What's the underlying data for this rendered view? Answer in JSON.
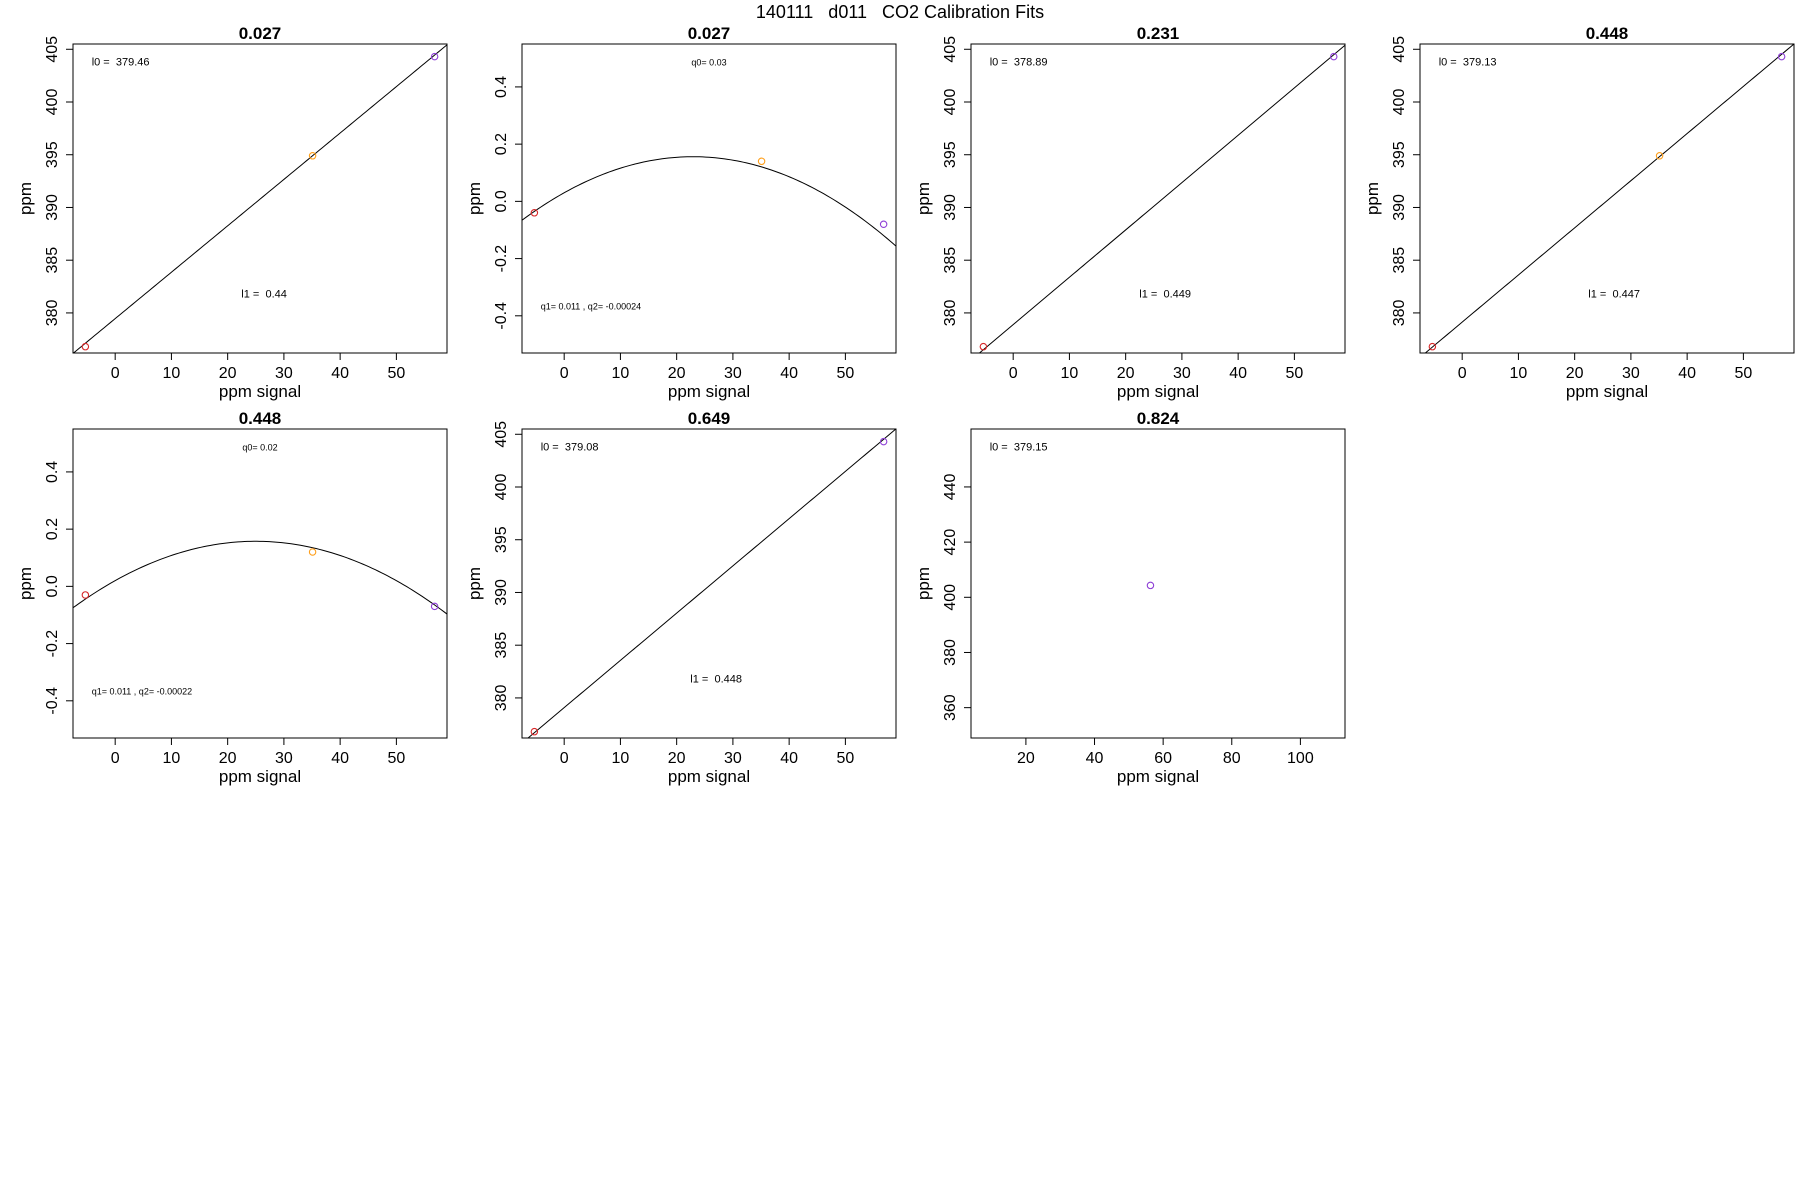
{
  "figure": {
    "title": "140111   d011   CO2 Calibration Fits",
    "colors": {
      "frame": "#000000",
      "fit_line": "#000000"
    }
  },
  "chart_data": [
    {
      "type": "scatter",
      "title": "0.027",
      "xlabel": "ppm signal",
      "ylabel": "ppm",
      "xlim": [
        -7.5,
        59
      ],
      "ylim": [
        376.2,
        405.5
      ],
      "xticks": [
        0,
        10,
        20,
        30,
        40,
        50
      ],
      "yticks": [
        380,
        385,
        390,
        395,
        400,
        405
      ],
      "points": [
        {
          "x": -5.3,
          "y": 376.8,
          "color": "#d62728"
        },
        {
          "x": 35.1,
          "y": 394.9,
          "color": "#ff9f1a"
        },
        {
          "x": 56.8,
          "y": 404.3,
          "color": "#8e3fd6"
        }
      ],
      "fit": {
        "kind": "linear",
        "a": 379.46,
        "b": 0.44
      },
      "annotations": [
        "l0 =  379.46",
        "l1 =  0.44"
      ]
    },
    {
      "type": "scatter",
      "title": "0.027",
      "xlabel": "ppm signal",
      "ylabel": "ppm",
      "xlim": [
        -7.5,
        59
      ],
      "ylim": [
        -0.53,
        0.55
      ],
      "xticks": [
        0,
        10,
        20,
        30,
        40,
        50
      ],
      "yticks": [
        -0.4,
        -0.2,
        0.0,
        0.2,
        0.4
      ],
      "points": [
        {
          "x": -5.3,
          "y": -0.04,
          "color": "#d62728"
        },
        {
          "x": 35.1,
          "y": 0.14,
          "color": "#ff9f1a"
        },
        {
          "x": 56.8,
          "y": -0.08,
          "color": "#8e3fd6"
        }
      ],
      "fit": {
        "kind": "quadratic",
        "a": 0.03,
        "b": 0.011,
        "c": -0.00024
      },
      "annotations": [
        "q0= 0.03",
        "q1= 0.011 , q2= -0.00024"
      ]
    },
    {
      "type": "scatter",
      "title": "0.231",
      "xlabel": "ppm signal",
      "ylabel": "ppm",
      "xlim": [
        -7.5,
        59
      ],
      "ylim": [
        376.2,
        405.5
      ],
      "xticks": [
        0,
        10,
        20,
        30,
        40,
        50
      ],
      "yticks": [
        380,
        385,
        390,
        395,
        400,
        405
      ],
      "points": [
        {
          "x": -5.3,
          "y": 376.8,
          "color": "#d62728"
        },
        {
          "x": 57.0,
          "y": 404.3,
          "color": "#8e3fd6"
        }
      ],
      "fit": {
        "kind": "linear",
        "a": 378.89,
        "b": 0.449
      },
      "annotations": [
        "l0 =  378.89",
        "l1 =  0.449"
      ]
    },
    {
      "type": "scatter",
      "title": "0.448",
      "xlabel": "ppm signal",
      "ylabel": "ppm",
      "xlim": [
        -7.5,
        59
      ],
      "ylim": [
        376.2,
        405.5
      ],
      "xticks": [
        0,
        10,
        20,
        30,
        40,
        50
      ],
      "yticks": [
        380,
        385,
        390,
        395,
        400,
        405
      ],
      "points": [
        {
          "x": -5.3,
          "y": 376.8,
          "color": "#d62728"
        },
        {
          "x": 35.1,
          "y": 394.9,
          "color": "#ff9f1a"
        },
        {
          "x": 56.8,
          "y": 404.3,
          "color": "#8e3fd6"
        }
      ],
      "fit": {
        "kind": "linear",
        "a": 379.13,
        "b": 0.447
      },
      "annotations": [
        "l0 =  379.13",
        "l1 =  0.447"
      ]
    },
    {
      "type": "scatter",
      "title": "0.448",
      "xlabel": "ppm signal",
      "ylabel": "ppm",
      "xlim": [
        -7.5,
        59
      ],
      "ylim": [
        -0.53,
        0.55
      ],
      "xticks": [
        0,
        10,
        20,
        30,
        40,
        50
      ],
      "yticks": [
        -0.4,
        -0.2,
        0.0,
        0.2,
        0.4
      ],
      "points": [
        {
          "x": -5.3,
          "y": -0.03,
          "color": "#d62728"
        },
        {
          "x": 35.1,
          "y": 0.12,
          "color": "#ff9f1a"
        },
        {
          "x": 56.8,
          "y": -0.07,
          "color": "#8e3fd6"
        }
      ],
      "fit": {
        "kind": "quadratic",
        "a": 0.02,
        "b": 0.011,
        "c": -0.00022
      },
      "annotations": [
        "q0= 0.02",
        "q1= 0.011 , q2= -0.00022"
      ]
    },
    {
      "type": "scatter",
      "title": "0.649",
      "xlabel": "ppm signal",
      "ylabel": "ppm",
      "xlim": [
        -7.5,
        59
      ],
      "ylim": [
        376.2,
        405.5
      ],
      "xticks": [
        0,
        10,
        20,
        30,
        40,
        50
      ],
      "yticks": [
        380,
        385,
        390,
        395,
        400,
        405
      ],
      "points": [
        {
          "x": -5.3,
          "y": 376.8,
          "color": "#d62728"
        },
        {
          "x": 56.8,
          "y": 404.3,
          "color": "#8e3fd6"
        }
      ],
      "fit": {
        "kind": "linear",
        "a": 379.08,
        "b": 0.448
      },
      "annotations": [
        "l0 =  379.08",
        "l1 =  0.448"
      ]
    },
    {
      "type": "scatter",
      "title": "0.824",
      "xlabel": "ppm signal",
      "ylabel": "ppm",
      "xlim": [
        4,
        113
      ],
      "ylim": [
        349,
        461
      ],
      "xticks": [
        20,
        40,
        60,
        80,
        100
      ],
      "yticks": [
        360,
        380,
        400,
        420,
        440
      ],
      "points": [
        {
          "x": 56.3,
          "y": 404.3,
          "color": "#8e3fd6"
        }
      ],
      "fit": null,
      "annotations": [
        "l0 =  379.15"
      ]
    }
  ]
}
